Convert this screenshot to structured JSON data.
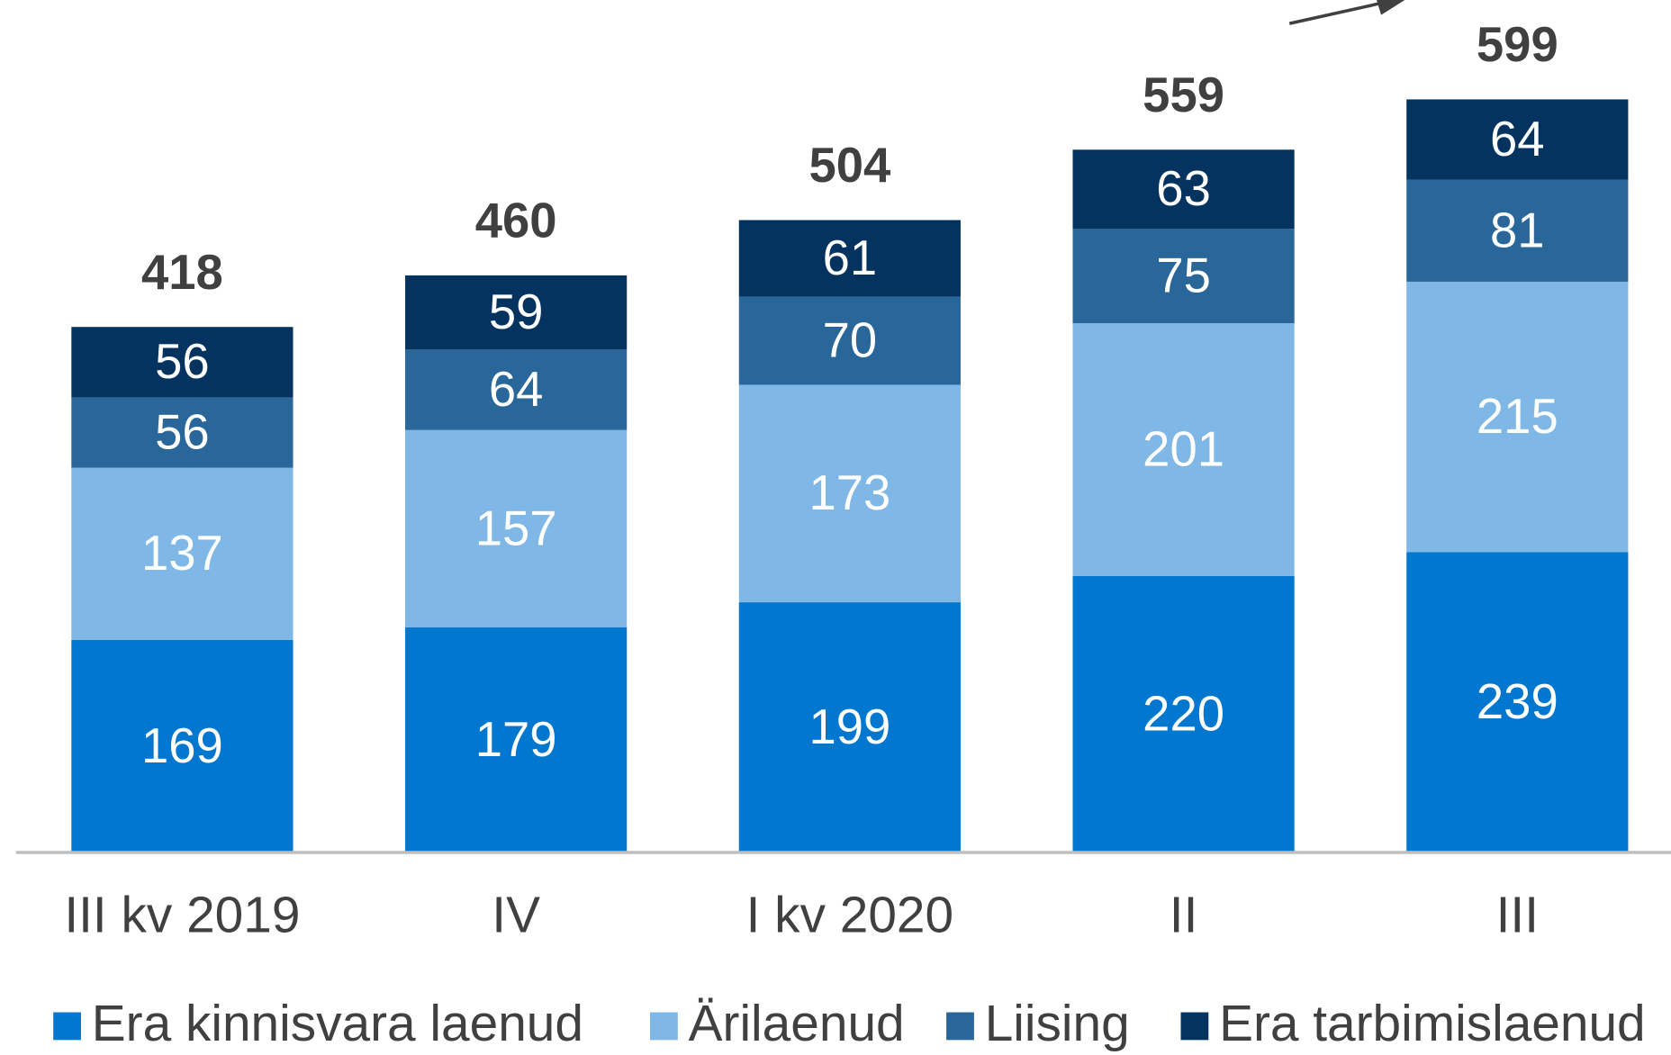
{
  "chart_data": {
    "type": "stacked_bar",
    "categories": [
      "III kv 2019",
      "IV",
      "I kv 2020",
      "II",
      "III"
    ],
    "series": [
      {
        "name": "Era kinnisvara laenud",
        "color": "#0277d0",
        "values": [
          169,
          179,
          199,
          220,
          239
        ]
      },
      {
        "name": "Ärilaenud",
        "color": "#7fb7e6",
        "values": [
          137,
          157,
          173,
          201,
          215
        ]
      },
      {
        "name": "Liising",
        "color": "#296699",
        "values": [
          56,
          64,
          70,
          75,
          81
        ]
      },
      {
        "name": "Era tarbimislaenud",
        "color": "#04335f",
        "values": [
          56,
          59,
          61,
          63,
          64
        ]
      }
    ],
    "totals": [
      418,
      460,
      504,
      559,
      599
    ],
    "ylim": [
      0,
      678
    ]
  }
}
